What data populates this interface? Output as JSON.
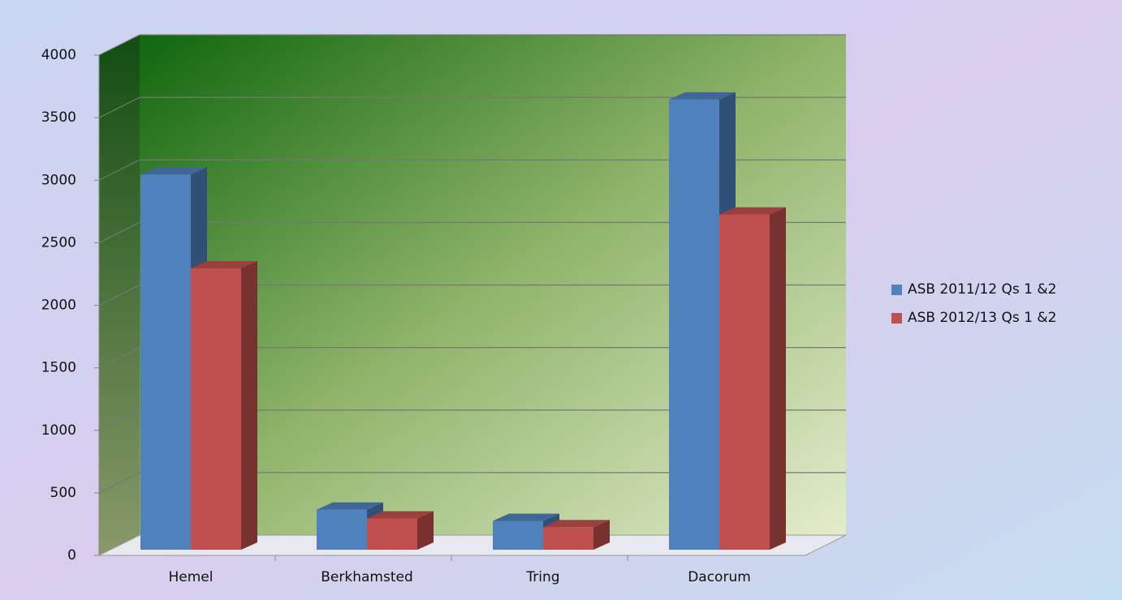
{
  "chart_data": {
    "type": "bar3d",
    "categories": [
      "Hemel",
      "Berkhamsted",
      "Tring",
      "Dacorum"
    ],
    "series": [
      {
        "name": "ASB 2011/12 Qs 1 &2",
        "color": "#4f81bd",
        "values": [
          3000,
          320,
          230,
          3600
        ]
      },
      {
        "name": "ASB 2012/13 Qs 1 &2",
        "color": "#c0504d",
        "values": [
          2250,
          250,
          180,
          2680
        ]
      }
    ],
    "ylim": [
      0,
      4000
    ],
    "yticks": [
      0,
      500,
      1000,
      1500,
      2000,
      2500,
      3000,
      3500,
      4000
    ],
    "grid": true,
    "legend": "right"
  }
}
